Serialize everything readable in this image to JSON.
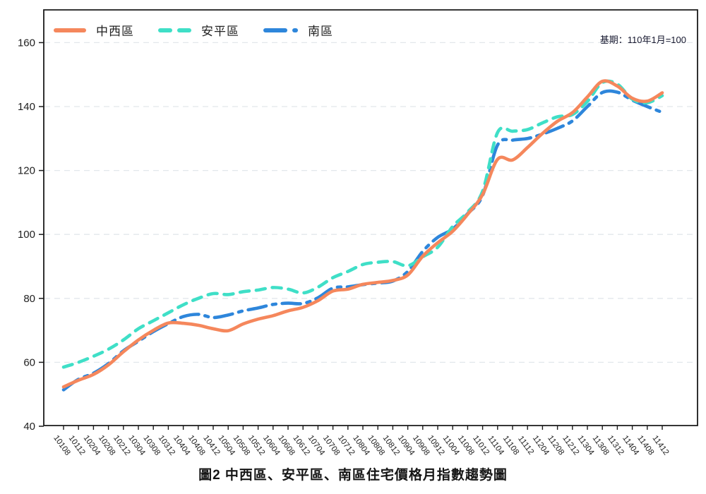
{
  "title": "圖2 中西區、安平區、南區住宅價格月指數趨勢圖",
  "annotation": "基期：110年1月=100",
  "legend": {
    "items": [
      {
        "label": "中西區",
        "color": "#F5875C",
        "style": "solid"
      },
      {
        "label": "安平區",
        "color": "#3FDFC7",
        "style": "dashed"
      },
      {
        "label": "南區",
        "color": "#2E86DB",
        "style": "dashdot"
      }
    ]
  },
  "chart_data": {
    "type": "line",
    "title": "圖2 中西區、安平區、南區住宅價格月指數趨勢圖",
    "note": "基期：110年1月=100",
    "x": [
      "10108",
      "10112",
      "10204",
      "10208",
      "10212",
      "10304",
      "10308",
      "10312",
      "10404",
      "10408",
      "10412",
      "10504",
      "10508",
      "10512",
      "10604",
      "10608",
      "10612",
      "10704",
      "10708",
      "10712",
      "10804",
      "10808",
      "10812",
      "10904",
      "10908",
      "10912",
      "11004",
      "11008",
      "11012",
      "11104",
      "11108",
      "11112",
      "11204",
      "11208",
      "11212",
      "11304",
      "11308",
      "11312",
      "11404",
      "11408",
      "11412"
    ],
    "series": [
      {
        "name": "中西區",
        "color": "#F5875C",
        "dash": "solid",
        "values": [
          52.3,
          54.4,
          56.2,
          59.2,
          63.3,
          67.0,
          70.0,
          72.3,
          72.2,
          71.6,
          70.5,
          69.9,
          72.0,
          73.5,
          74.6,
          76.1,
          77.2,
          79.3,
          82.3,
          82.9,
          84.4,
          85.0,
          85.6,
          87.3,
          93.2,
          97.4,
          101.0,
          106.3,
          112.5,
          123.5,
          123.3,
          127.2,
          131.6,
          135.4,
          138.1,
          143.0,
          147.9,
          146.4,
          142.6,
          141.7,
          144.3
        ]
      },
      {
        "name": "安平區",
        "color": "#3FDFC7",
        "dash": "dashed",
        "values": [
          58.5,
          60.0,
          61.9,
          64.1,
          67.0,
          70.5,
          73.0,
          75.5,
          78.0,
          80.0,
          81.5,
          81.2,
          82.1,
          82.6,
          83.4,
          82.9,
          81.7,
          83.5,
          86.5,
          88.4,
          90.6,
          91.3,
          91.5,
          90.2,
          93.0,
          96.0,
          102.5,
          107.0,
          113.5,
          131.9,
          132.3,
          132.8,
          134.9,
          136.8,
          137.5,
          141.6,
          147.5,
          147.0,
          142.3,
          141.2,
          143.4
        ]
      },
      {
        "name": "南區",
        "color": "#2E86DB",
        "dash": "dashdot",
        "values": [
          51.4,
          54.7,
          56.6,
          59.6,
          63.6,
          66.6,
          69.6,
          72.1,
          74.3,
          75.0,
          74.0,
          74.8,
          76.1,
          77.0,
          78.1,
          78.5,
          78.4,
          80.2,
          83.2,
          83.6,
          84.3,
          84.8,
          85.4,
          88.4,
          94.7,
          99.1,
          101.7,
          106.5,
          112.2,
          128.0,
          129.5,
          130.0,
          131.4,
          133.2,
          135.5,
          140.0,
          144.4,
          144.5,
          142.0,
          140.0,
          138.2
        ]
      }
    ],
    "yticks": [
      40,
      60,
      80,
      100,
      120,
      140,
      160
    ],
    "ylim": [
      40,
      170
    ],
    "grid": "horizontal-dashed",
    "legend_position": "top-left-inside",
    "colors": {
      "grid": "#E2E7EB",
      "axis": "#1a1a1a",
      "tick_text": "#1f1f1f"
    }
  }
}
